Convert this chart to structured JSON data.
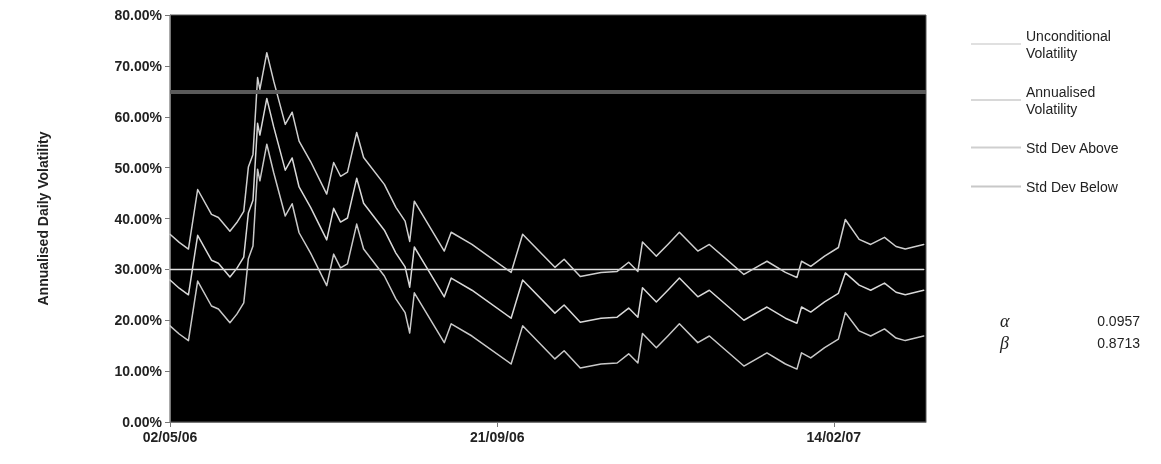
{
  "chart_data": {
    "type": "line",
    "ylabel": "Annualised Daily Volatility",
    "x": [
      "2006-05-02",
      "2006-05-06",
      "2006-05-10",
      "2006-05-14",
      "2006-05-20",
      "2006-05-23",
      "2006-05-28",
      "2006-05-31",
      "2006-06-03",
      "2006-06-05",
      "2006-06-07",
      "2006-06-09",
      "2006-06-10",
      "2006-06-13",
      "2006-06-16",
      "2006-06-21",
      "2006-06-24",
      "2006-06-27",
      "2006-07-02",
      "2006-07-09",
      "2006-07-12",
      "2006-07-15",
      "2006-07-18",
      "2006-07-22",
      "2006-07-25",
      "2006-08-03",
      "2006-08-08",
      "2006-08-12",
      "2006-08-14",
      "2006-08-16",
      "2006-08-29",
      "2006-09-01",
      "2006-09-10",
      "2006-09-27",
      "2006-10-02",
      "2006-10-16",
      "2006-10-20",
      "2006-10-27",
      "2006-11-05",
      "2006-11-12",
      "2006-11-17",
      "2006-11-21",
      "2006-11-23",
      "2006-11-29",
      "2006-12-04",
      "2006-12-09",
      "2006-12-17",
      "2006-12-22",
      "2007-01-06",
      "2007-01-16",
      "2007-01-24",
      "2007-01-29",
      "2007-01-31",
      "2007-02-04",
      "2007-02-10",
      "2007-02-16",
      "2007-02-19",
      "2007-02-25",
      "2007-03-02",
      "2007-03-08",
      "2007-03-13",
      "2007-03-17",
      "2007-03-25"
    ],
    "series": [
      {
        "name": "Unconditional Volatility",
        "color": "#e0e0e0",
        "x": [
          "2006-05-02",
          "2007-03-25"
        ],
        "values": [
          30,
          30
        ]
      },
      {
        "name": "Annualised Volatility",
        "color": "#d8d8d8",
        "values": [
          27.9,
          26.3,
          25.0,
          36.7,
          31.8,
          31.2,
          28.5,
          30.2,
          32.4,
          41.1,
          43.6,
          58.7,
          56.4,
          63.6,
          58.0,
          49.5,
          51.9,
          46.2,
          42.2,
          35.8,
          42.0,
          39.3,
          40.1,
          47.9,
          43.0,
          37.7,
          33.2,
          30.5,
          26.5,
          34.4,
          24.6,
          28.3,
          25.9,
          20.4,
          27.9,
          21.4,
          23.0,
          19.6,
          20.4,
          20.6,
          22.4,
          20.6,
          26.4,
          23.6,
          25.9,
          28.3,
          24.6,
          25.9,
          20.0,
          22.6,
          20.4,
          19.4,
          22.6,
          21.6,
          23.6,
          25.3,
          29.3,
          26.9,
          25.9,
          27.3,
          25.5,
          25.0,
          25.9
        ]
      },
      {
        "name": "Std Dev Above",
        "color": "#cfcfcf",
        "values": [
          36.9,
          35.3,
          34.0,
          45.7,
          40.8,
          40.2,
          37.5,
          39.2,
          41.4,
          50.1,
          52.6,
          67.7,
          65.4,
          72.6,
          67.0,
          58.5,
          60.9,
          55.2,
          51.2,
          44.8,
          51.0,
          48.3,
          49.1,
          56.9,
          52.0,
          46.7,
          42.2,
          39.5,
          35.5,
          43.4,
          33.6,
          37.3,
          34.9,
          29.4,
          36.9,
          30.4,
          32.0,
          28.6,
          29.4,
          29.6,
          31.4,
          29.6,
          35.4,
          32.6,
          34.9,
          37.3,
          33.6,
          34.9,
          29.0,
          31.6,
          29.4,
          28.4,
          31.6,
          30.6,
          32.6,
          34.3,
          39.8,
          35.9,
          34.9,
          36.3,
          34.5,
          34.0,
          34.9
        ]
      },
      {
        "name": "Std Dev Below",
        "color": "#c8c8c8",
        "values": [
          18.9,
          17.3,
          16.0,
          27.7,
          22.8,
          22.2,
          19.5,
          21.2,
          23.4,
          32.1,
          34.6,
          49.7,
          47.4,
          54.6,
          49.0,
          40.5,
          42.9,
          37.2,
          33.2,
          26.8,
          33.0,
          30.3,
          31.1,
          38.9,
          34.0,
          28.7,
          24.2,
          21.5,
          17.5,
          25.4,
          15.6,
          19.3,
          16.9,
          11.4,
          18.9,
          12.4,
          14.0,
          10.6,
          11.4,
          11.6,
          13.4,
          11.6,
          17.4,
          14.6,
          16.9,
          19.3,
          15.6,
          16.9,
          11.0,
          13.6,
          11.4,
          10.4,
          13.6,
          12.6,
          14.6,
          16.3,
          21.5,
          17.9,
          16.9,
          18.3,
          16.5,
          16.0,
          16.9
        ]
      }
    ],
    "xlim": [
      "2006-05-02",
      "2007-03-26"
    ],
    "xticks": [
      {
        "value": "2006-05-02",
        "label": "02/05/06"
      },
      {
        "value": "2006-09-21",
        "label": "21/09/06"
      },
      {
        "value": "2007-02-14",
        "label": "14/02/07"
      }
    ],
    "ylim": [
      0,
      80
    ],
    "yticks": [
      {
        "value": 0,
        "label": "0.00%"
      },
      {
        "value": 10,
        "label": "10.00%"
      },
      {
        "value": 20,
        "label": "20.00%"
      },
      {
        "value": 30,
        "label": "30.00%"
      },
      {
        "value": 40,
        "label": "40.00%"
      },
      {
        "value": 50,
        "label": "50.00%"
      },
      {
        "value": 60,
        "label": "60.00%"
      },
      {
        "value": 70,
        "label": "70.00%"
      },
      {
        "value": 80,
        "label": "80.00%"
      }
    ],
    "ref_lines": [
      {
        "axis": "y",
        "value": 65,
        "color": "#5a5a5a"
      }
    ],
    "annotations": [
      "α",
      "0.0957",
      "β",
      "0.8713"
    ],
    "grid": false,
    "legend": "right",
    "marker": "none",
    "line_style": "solid"
  }
}
